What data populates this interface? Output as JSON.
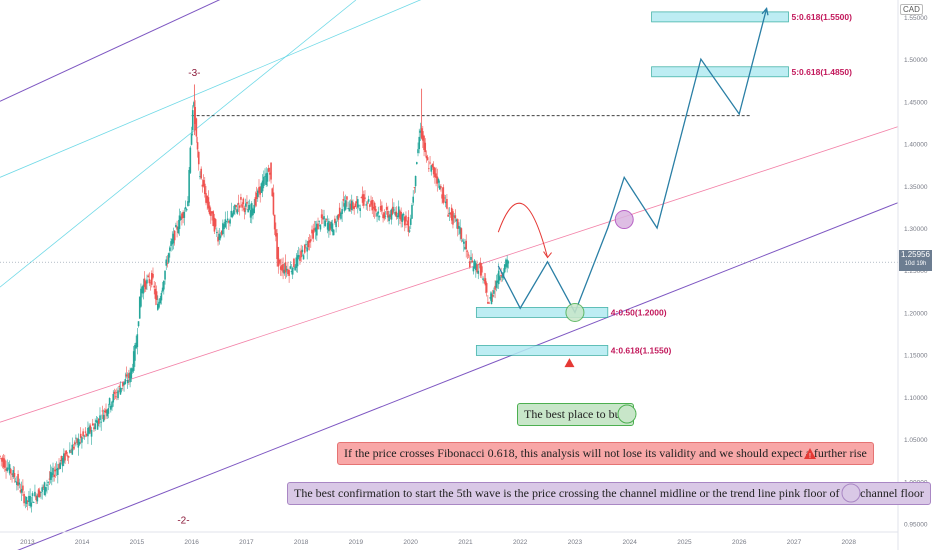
{
  "currency_label": "CAD",
  "last_price": {
    "value": "1.25956",
    "countdown": "10d 19h"
  },
  "notes": {
    "buy": "The best place to buy",
    "fib": "If the price crosses Fibonacci 0.618, this analysis will not lose its validity and we should expect a further rise",
    "confirmation": "The best confirmation to start the 5th wave is the price crossing the channel midline or the trend line pink floor of the channel floor"
  },
  "wave_labels": [
    {
      "text": "-2-",
      "x": 2015.85,
      "y": 0.95
    },
    {
      "text": "-3-",
      "x": 2016.05,
      "y": 1.48
    }
  ],
  "fib_zones": [
    {
      "label": "4:0.50(1.2000)",
      "x0": 2021.2,
      "x1": 2023.6,
      "y": 1.2,
      "color": "#26a69a"
    },
    {
      "label": "4:0.618(1.1550)",
      "x0": 2021.2,
      "x1": 2023.6,
      "y": 1.155,
      "color": "#26a69a"
    },
    {
      "label": "5:0.618(1.4850)",
      "x0": 2024.4,
      "x1": 2026.9,
      "y": 1.485,
      "color": "#26a69a"
    },
    {
      "label": "5:0.618(1.5500)",
      "x0": 2024.4,
      "x1": 2026.9,
      "y": 1.55,
      "color": "#26a69a"
    }
  ],
  "colors": {
    "bull": "#26a69a",
    "bear": "#ef5350",
    "channel": "#7e57c2",
    "midline_pink": "#f06292",
    "projection": "#2a7fa5",
    "fib_label": "#c2185b",
    "warning": "#e53935"
  },
  "chart_data": {
    "type": "candlestick",
    "symbol_currency": "CAD",
    "x_axis_years": [
      "2013",
      "2014",
      "2015",
      "2016",
      "2017",
      "2018",
      "2019",
      "2020",
      "2021",
      "2022",
      "2023",
      "2024",
      "2025",
      "2026",
      "2027",
      "2028"
    ],
    "y_ticks": [
      "1.55000",
      "1.50000",
      "1.45000",
      "1.40000",
      "1.35000",
      "1.30000",
      "1.25000",
      "1.20000",
      "1.15000",
      "1.10000",
      "1.05000",
      "1.00000",
      "0.95000"
    ],
    "ylim": [
      0.94,
      1.57
    ],
    "xlim": [
      2012.5,
      2028.9
    ],
    "price_path": [
      [
        2012.5,
        1.03
      ],
      [
        2012.8,
        1.005
      ],
      [
        2013.0,
        0.975
      ],
      [
        2013.3,
        0.99
      ],
      [
        2013.6,
        1.02
      ],
      [
        2013.9,
        1.045
      ],
      [
        2014.1,
        1.055
      ],
      [
        2014.4,
        1.08
      ],
      [
        2014.7,
        1.11
      ],
      [
        2014.9,
        1.125
      ],
      [
        2015.0,
        1.16
      ],
      [
        2015.1,
        1.23
      ],
      [
        2015.3,
        1.24
      ],
      [
        2015.4,
        1.205
      ],
      [
        2015.6,
        1.27
      ],
      [
        2015.8,
        1.31
      ],
      [
        2015.95,
        1.33
      ],
      [
        2016.05,
        1.455
      ],
      [
        2016.15,
        1.37
      ],
      [
        2016.3,
        1.33
      ],
      [
        2016.5,
        1.29
      ],
      [
        2016.7,
        1.31
      ],
      [
        2016.9,
        1.33
      ],
      [
        2017.1,
        1.32
      ],
      [
        2017.3,
        1.35
      ],
      [
        2017.45,
        1.37
      ],
      [
        2017.6,
        1.255
      ],
      [
        2017.8,
        1.25
      ],
      [
        2018.0,
        1.265
      ],
      [
        2018.2,
        1.29
      ],
      [
        2018.4,
        1.31
      ],
      [
        2018.6,
        1.3
      ],
      [
        2018.8,
        1.33
      ],
      [
        2019.0,
        1.325
      ],
      [
        2019.2,
        1.335
      ],
      [
        2019.4,
        1.32
      ],
      [
        2019.6,
        1.315
      ],
      [
        2019.8,
        1.32
      ],
      [
        2020.0,
        1.3
      ],
      [
        2020.2,
        1.42
      ],
      [
        2020.3,
        1.38
      ],
      [
        2020.5,
        1.36
      ],
      [
        2020.7,
        1.32
      ],
      [
        2020.9,
        1.3
      ],
      [
        2021.1,
        1.26
      ],
      [
        2021.3,
        1.25
      ],
      [
        2021.45,
        1.21
      ],
      [
        2021.6,
        1.24
      ],
      [
        2021.8,
        1.26
      ]
    ],
    "channel": {
      "lower": {
        "start": [
          2012.5,
          0.91
        ],
        "end": [
          2028.9,
          1.33
        ]
      },
      "upper": {
        "start": [
          2012.5,
          1.45
        ],
        "end": [
          2017.5,
          1.6
        ]
      },
      "inner_lines": [
        {
          "name": "midline",
          "start": [
            2012.5,
            1.23
          ],
          "end": [
            2019.0,
            1.57
          ],
          "color": "teal"
        },
        {
          "name": "pink_floor",
          "start": [
            2012.5,
            1.07
          ],
          "end": [
            2028.9,
            1.42
          ],
          "color": "pink"
        },
        {
          "name": "upper_inner",
          "start": [
            2012.5,
            1.36
          ],
          "end": [
            2022.0,
            1.62
          ],
          "color": "teal"
        }
      ]
    },
    "resistance_level": 1.433,
    "projection_path": [
      [
        2021.6,
        1.255
      ],
      [
        2022.0,
        1.205
      ],
      [
        2022.5,
        1.26
      ],
      [
        2023.0,
        1.2
      ],
      [
        2023.6,
        1.3
      ],
      [
        2023.9,
        1.36
      ],
      [
        2024.5,
        1.3
      ],
      [
        2025.3,
        1.5
      ],
      [
        2026.0,
        1.435
      ],
      [
        2026.5,
        1.56
      ]
    ],
    "projection_arc": {
      "from": [
        2021.6,
        1.295
      ],
      "to": [
        2022.5,
        1.265
      ],
      "peak": 1.335
    },
    "markers": [
      {
        "type": "circle",
        "color": "green",
        "x": 2023.0,
        "y": 1.2
      },
      {
        "type": "circle",
        "color": "purple",
        "x": 2023.9,
        "y": 1.31
      }
    ],
    "warning_marker": {
      "x": 2022.9,
      "y": 1.14
    }
  }
}
